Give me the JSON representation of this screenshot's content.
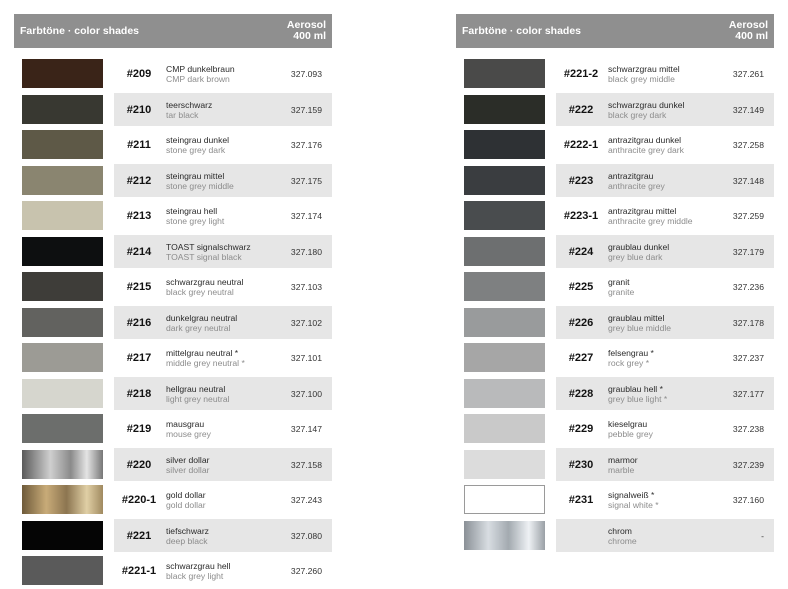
{
  "header": {
    "title": "Farbtöne · color shades",
    "aerosol_line1": "Aerosol",
    "aerosol_line2": "400 ml"
  },
  "left": [
    {
      "code": "#209",
      "de": "CMP dunkelbraun",
      "en": "CMP dark brown",
      "art": "327.093",
      "color": "#3a2418"
    },
    {
      "code": "#210",
      "de": "teerschwarz",
      "en": "tar black",
      "art": "327.159",
      "color": "#383831"
    },
    {
      "code": "#211",
      "de": "steingrau dunkel",
      "en": "stone grey dark",
      "art": "327.176",
      "color": "#5e5947"
    },
    {
      "code": "#212",
      "de": "steingrau mittel",
      "en": "stone grey middle",
      "art": "327.175",
      "color": "#8a8570"
    },
    {
      "code": "#213",
      "de": "steingrau hell",
      "en": "stone grey light",
      "art": "327.174",
      "color": "#c8c3ae"
    },
    {
      "code": "#214",
      "de": "TOAST signalschwarz",
      "en": "TOAST signal black",
      "art": "327.180",
      "color": "#0d0f10"
    },
    {
      "code": "#215",
      "de": "schwarzgrau neutral",
      "en": "black grey neutral",
      "art": "327.103",
      "color": "#3e3d39"
    },
    {
      "code": "#216",
      "de": "dunkelgrau neutral",
      "en": "dark grey neutral",
      "art": "327.102",
      "color": "#62625f"
    },
    {
      "code": "#217",
      "de": "mittelgrau neutral *",
      "en": "middle grey neutral *",
      "art": "327.101",
      "color": "#9c9b95"
    },
    {
      "code": "#218",
      "de": "hellgrau neutral",
      "en": "light grey neutral",
      "art": "327.100",
      "color": "#d6d6ce"
    },
    {
      "code": "#219",
      "de": "mausgrau",
      "en": "mouse grey",
      "art": "327.147",
      "color": "#6c6e6c"
    },
    {
      "code": "#220",
      "de": "silver dollar",
      "en": "silver dollar",
      "art": "327.158",
      "color": "linear-gradient(90deg,#5a5a5a 0%,#cfcfcf 35%,#8a8a8a 60%,#e4e4e4 80%,#777 100%)"
    },
    {
      "code": "#220-1",
      "de": "gold dollar",
      "en": "gold dollar",
      "art": "327.243",
      "color": "linear-gradient(90deg,#6e5a3a 0%,#c8ab78 30%,#8c7550 55%,#e0cfa5 80%,#a08a60 100%)"
    },
    {
      "code": "#221",
      "de": "tiefschwarz",
      "en": "deep black",
      "art": "327.080",
      "color": "#050505"
    },
    {
      "code": "#221-1",
      "de": "schwarzgrau hell",
      "en": "black grey light",
      "art": "327.260",
      "color": "#5a5a5a"
    }
  ],
  "right": [
    {
      "code": "#221-2",
      "de": "schwarzgrau mittel",
      "en": "black grey middle",
      "art": "327.261",
      "color": "#4a4a49"
    },
    {
      "code": "#222",
      "de": "schwarzgrau dunkel",
      "en": "black grey dark",
      "art": "327.149",
      "color": "#2b2d28"
    },
    {
      "code": "#222-1",
      "de": "antrazitgrau dunkel",
      "en": "anthracite grey dark",
      "art": "327.258",
      "color": "#2e3134"
    },
    {
      "code": "#223",
      "de": "antrazitgrau",
      "en": "anthracite grey",
      "art": "327.148",
      "color": "#3a3d40"
    },
    {
      "code": "#223-1",
      "de": "antrazitgrau mittel",
      "en": "anthracite grey middle",
      "art": "327.259",
      "color": "#494c4e"
    },
    {
      "code": "#224",
      "de": "graublau dunkel",
      "en": "grey blue dark",
      "art": "327.179",
      "color": "#6d6f70"
    },
    {
      "code": "#225",
      "de": "granit",
      "en": "granite",
      "art": "327.236",
      "color": "#7e8081"
    },
    {
      "code": "#226",
      "de": "graublau mittel",
      "en": "grey blue middle",
      "art": "327.178",
      "color": "#999b9c"
    },
    {
      "code": "#227",
      "de": "felsengrau *",
      "en": "rock grey *",
      "art": "327.237",
      "color": "#a6a6a6"
    },
    {
      "code": "#228",
      "de": "graublau hell *",
      "en": "grey blue light *",
      "art": "327.177",
      "color": "#b9babb"
    },
    {
      "code": "#229",
      "de": "kieselgrau",
      "en": "pebble grey",
      "art": "327.238",
      "color": "#c9c9c9"
    },
    {
      "code": "#230",
      "de": "marmor",
      "en": "marble",
      "art": "327.239",
      "color": "#dcdcdc"
    },
    {
      "code": "#231",
      "de": "signalweiß *",
      "en": "signal white *",
      "art": "327.160",
      "color": "#ffffff"
    },
    {
      "code": "",
      "de": "chrom",
      "en": "chrome",
      "art": "-",
      "color": "linear-gradient(90deg,#8a9096 0%,#d8dde2 30%,#a3aab0 55%,#eef1f4 80%,#9aa0a6 100%)"
    }
  ]
}
